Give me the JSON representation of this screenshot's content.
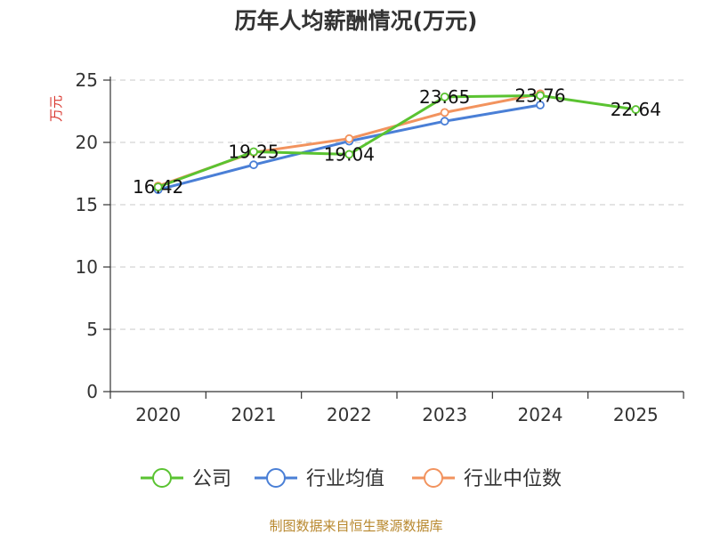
{
  "chart_data": {
    "type": "line",
    "title": "历年人均薪酬情况(万元)",
    "ylabel": "万元",
    "xlabel": "",
    "ylim": [
      0,
      25
    ],
    "yticks": [
      0,
      5,
      10,
      15,
      20,
      25
    ],
    "categories": [
      "2020",
      "2021",
      "2022",
      "2023",
      "2024",
      "2025"
    ],
    "grid": true,
    "legend_position": "bottom",
    "series": [
      {
        "name": "公司",
        "color": "#5ac331",
        "values": [
          16.42,
          19.25,
          19.04,
          23.65,
          23.76,
          22.64
        ],
        "labels": [
          "16.42",
          "19.25",
          "19.04",
          "23.65",
          "23.76",
          "22.64"
        ]
      },
      {
        "name": "行业均值",
        "color": "#4a7fd6",
        "values": [
          16.2,
          18.2,
          20.1,
          21.7,
          23.0,
          null
        ]
      },
      {
        "name": "行业中位数",
        "color": "#f2935e",
        "values": [
          16.5,
          19.2,
          20.3,
          22.4,
          23.9,
          null
        ]
      }
    ],
    "source": "制图数据来自恒生聚源数据库"
  }
}
